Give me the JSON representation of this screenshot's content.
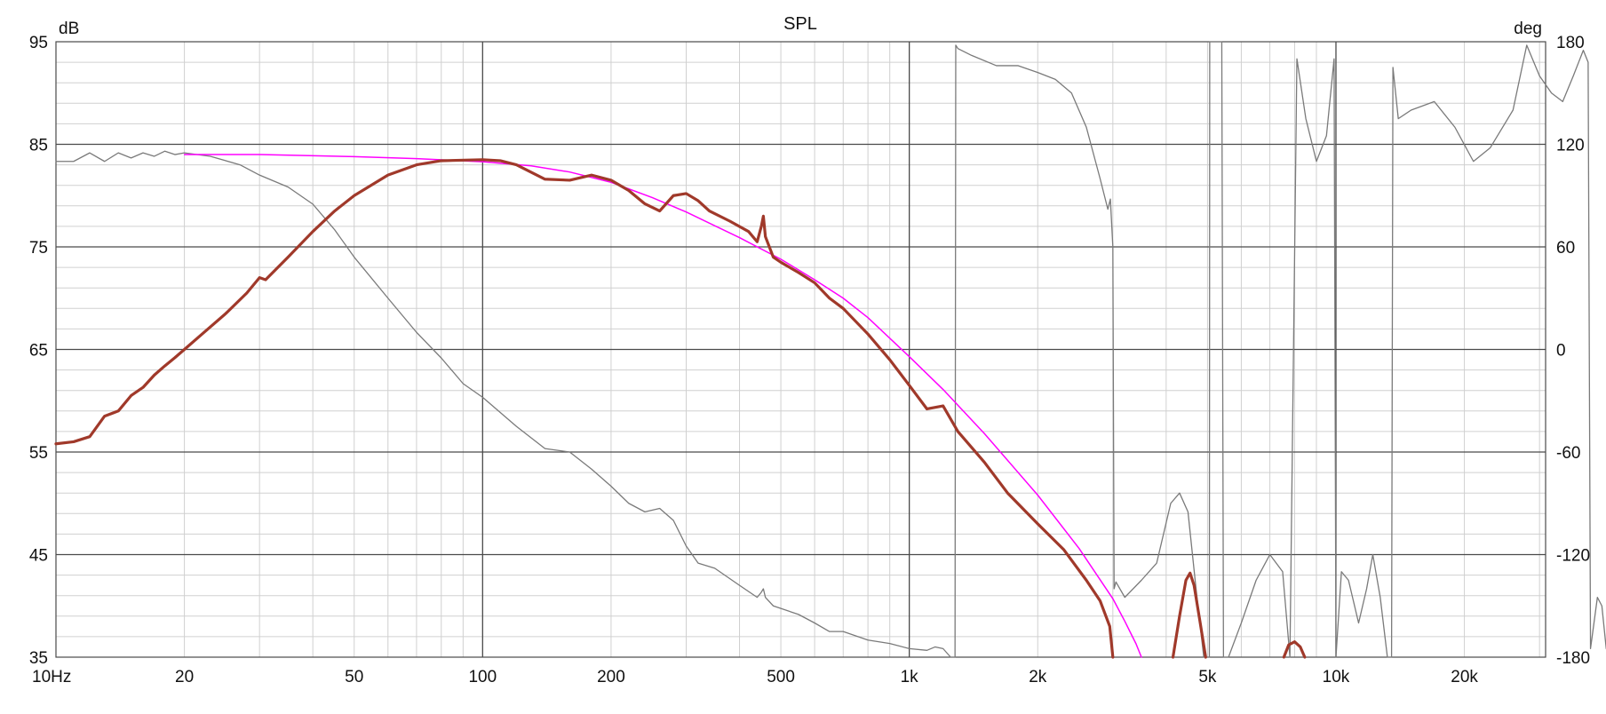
{
  "chart_data": {
    "type": "line",
    "title": "SPL",
    "y_left_unit": "dB",
    "y_right_unit": "deg",
    "x_scale": "log",
    "xlim": [
      10,
      31000
    ],
    "ylim_left": [
      35,
      95
    ],
    "ylim_right": [
      -180,
      180
    ],
    "grid": true,
    "legend": "none",
    "x_tick_labels": [
      {
        "value": 10,
        "label": "10Hz"
      },
      {
        "value": 20,
        "label": "20"
      },
      {
        "value": 50,
        "label": "50"
      },
      {
        "value": 100,
        "label": "100"
      },
      {
        "value": 200,
        "label": "200"
      },
      {
        "value": 500,
        "label": "500"
      },
      {
        "value": 1000,
        "label": "1k"
      },
      {
        "value": 2000,
        "label": "2k"
      },
      {
        "value": 5000,
        "label": "5k"
      },
      {
        "value": 10000,
        "label": "10k"
      },
      {
        "value": 20000,
        "label": "20k"
      }
    ],
    "y_left_tick_labels": [
      {
        "value": 95,
        "label": "95"
      },
      {
        "value": 85,
        "label": "85"
      },
      {
        "value": 75,
        "label": "75"
      },
      {
        "value": 65,
        "label": "65"
      },
      {
        "value": 55,
        "label": "55"
      },
      {
        "value": 45,
        "label": "45"
      },
      {
        "value": 35,
        "label": "35"
      }
    ],
    "y_right_tick_labels": [
      {
        "value": 180,
        "label": "180"
      },
      {
        "value": 120,
        "label": "120"
      },
      {
        "value": 60,
        "label": "60"
      },
      {
        "value": 0,
        "label": "0"
      },
      {
        "value": -60,
        "label": "-60"
      },
      {
        "value": -120,
        "label": "-120"
      },
      {
        "value": -180,
        "label": "-180"
      }
    ],
    "colors": {
      "spl": "#a0392a",
      "target": "#ff00ff",
      "phase": "#7a7a7a",
      "major_grid": "#4a4a4a",
      "minor_grid": "#d0d0d0"
    },
    "series": [
      {
        "key": "spl",
        "axis": "left",
        "points": [
          [
            10,
            55.8
          ],
          [
            11,
            56
          ],
          [
            12,
            56.5
          ],
          [
            13,
            58.5
          ],
          [
            14,
            59
          ],
          [
            15,
            60.5
          ],
          [
            16,
            61.3
          ],
          [
            17,
            62.5
          ],
          [
            18,
            63.4
          ],
          [
            19,
            64.2
          ],
          [
            20,
            65
          ],
          [
            22,
            66.5
          ],
          [
            25,
            68.5
          ],
          [
            28,
            70.5
          ],
          [
            30,
            72
          ],
          [
            31,
            71.8
          ],
          [
            35,
            74
          ],
          [
            40,
            76.5
          ],
          [
            45,
            78.5
          ],
          [
            50,
            80
          ],
          [
            60,
            82
          ],
          [
            70,
            83
          ],
          [
            80,
            83.4
          ],
          [
            100,
            83.5
          ],
          [
            110,
            83.4
          ],
          [
            120,
            83
          ],
          [
            140,
            81.6
          ],
          [
            160,
            81.5
          ],
          [
            180,
            82
          ],
          [
            200,
            81.5
          ],
          [
            220,
            80.5
          ],
          [
            240,
            79.2
          ],
          [
            260,
            78.5
          ],
          [
            280,
            80
          ],
          [
            300,
            80.2
          ],
          [
            320,
            79.5
          ],
          [
            340,
            78.5
          ],
          [
            380,
            77.5
          ],
          [
            420,
            76.5
          ],
          [
            440,
            75.5
          ],
          [
            450,
            77
          ],
          [
            455,
            78
          ],
          [
            460,
            76
          ],
          [
            480,
            74
          ],
          [
            500,
            73.5
          ],
          [
            550,
            72.5
          ],
          [
            600,
            71.5
          ],
          [
            650,
            70
          ],
          [
            700,
            69
          ],
          [
            800,
            66.5
          ],
          [
            900,
            64
          ],
          [
            1000,
            61.5
          ],
          [
            1100,
            59.2
          ],
          [
            1200,
            59.5
          ],
          [
            1300,
            57
          ],
          [
            1500,
            54
          ],
          [
            1700,
            51
          ],
          [
            2000,
            48
          ],
          [
            2300,
            45.5
          ],
          [
            2600,
            42.5
          ],
          [
            2800,
            40.5
          ],
          [
            2950,
            38
          ],
          [
            3000,
            35
          ]
        ]
      },
      {
        "key": "spl-hf-1",
        "axis": "left",
        "points": [
          [
            4150,
            35
          ],
          [
            4300,
            39
          ],
          [
            4450,
            42.5
          ],
          [
            4550,
            43.2
          ],
          [
            4650,
            42
          ],
          [
            4800,
            38.5
          ],
          [
            4950,
            35
          ]
        ]
      },
      {
        "key": "spl-hf-2",
        "axis": "left",
        "points": [
          [
            7550,
            35
          ],
          [
            7750,
            36.2
          ],
          [
            8000,
            36.5
          ],
          [
            8250,
            36
          ],
          [
            8450,
            35
          ]
        ]
      },
      {
        "key": "target",
        "axis": "left",
        "points": [
          [
            20,
            84
          ],
          [
            30,
            84
          ],
          [
            50,
            83.8
          ],
          [
            70,
            83.6
          ],
          [
            100,
            83.3
          ],
          [
            130,
            82.9
          ],
          [
            160,
            82.3
          ],
          [
            200,
            81.3
          ],
          [
            250,
            79.8
          ],
          [
            300,
            78.4
          ],
          [
            400,
            75.9
          ],
          [
            500,
            73.8
          ],
          [
            600,
            71.8
          ],
          [
            700,
            70
          ],
          [
            800,
            68.1
          ],
          [
            1000,
            64.3
          ],
          [
            1200,
            61.1
          ],
          [
            1500,
            56.8
          ],
          [
            2000,
            50.8
          ],
          [
            2500,
            45.6
          ],
          [
            3000,
            40.7
          ],
          [
            3200,
            38.5
          ],
          [
            3400,
            36.3
          ],
          [
            3500,
            35
          ]
        ]
      },
      {
        "key": "phase",
        "axis": "right",
        "points": [
          [
            10,
            110
          ],
          [
            11,
            110
          ],
          [
            12,
            115
          ],
          [
            13,
            110
          ],
          [
            14,
            115
          ],
          [
            15,
            112
          ],
          [
            16,
            115
          ],
          [
            17,
            113
          ],
          [
            18,
            116
          ],
          [
            19,
            114
          ],
          [
            20,
            115
          ],
          [
            23,
            113
          ],
          [
            27,
            108
          ],
          [
            30,
            102
          ],
          [
            35,
            95
          ],
          [
            40,
            85
          ],
          [
            45,
            70
          ],
          [
            50,
            54
          ],
          [
            60,
            30
          ],
          [
            70,
            10
          ],
          [
            80,
            -5
          ],
          [
            90,
            -20
          ],
          [
            100,
            -28
          ],
          [
            120,
            -45
          ],
          [
            140,
            -58
          ],
          [
            160,
            -60
          ],
          [
            180,
            -70
          ],
          [
            200,
            -80
          ],
          [
            220,
            -90
          ],
          [
            240,
            -95
          ],
          [
            260,
            -93
          ],
          [
            280,
            -100
          ],
          [
            300,
            -115
          ],
          [
            320,
            -125
          ],
          [
            350,
            -128
          ],
          [
            400,
            -138
          ],
          [
            440,
            -145
          ],
          [
            450,
            -142
          ],
          [
            455,
            -140
          ],
          [
            460,
            -145
          ],
          [
            480,
            -150
          ],
          [
            550,
            -155
          ],
          [
            600,
            -160
          ],
          [
            650,
            -165
          ],
          [
            700,
            -165
          ],
          [
            800,
            -170
          ],
          [
            900,
            -172
          ],
          [
            1000,
            -175
          ],
          [
            1100,
            -176
          ],
          [
            1150,
            -174
          ],
          [
            1200,
            -175
          ],
          [
            1250,
            -180
          ],
          [
            1280,
            -180
          ],
          [
            1285,
            178
          ],
          [
            1300,
            176
          ],
          [
            1400,
            172
          ],
          [
            1600,
            166
          ],
          [
            1800,
            166
          ],
          [
            2000,
            162
          ],
          [
            2200,
            158
          ],
          [
            2400,
            150
          ],
          [
            2600,
            130
          ],
          [
            2800,
            100
          ],
          [
            2920,
            82
          ],
          [
            2960,
            88
          ],
          [
            3000,
            60
          ],
          [
            3020,
            -140
          ],
          [
            3050,
            -136
          ],
          [
            3200,
            -145
          ],
          [
            3500,
            -135
          ],
          [
            3800,
            -125
          ],
          [
            4100,
            -90
          ],
          [
            4300,
            -84
          ],
          [
            4500,
            -95
          ],
          [
            4700,
            -140
          ],
          [
            4900,
            -180
          ],
          [
            5050,
            -180
          ],
          [
            5060,
            180
          ],
          [
            5400,
            180
          ],
          [
            5450,
            -180
          ],
          [
            5600,
            -180
          ],
          [
            6000,
            -160
          ],
          [
            6500,
            -135
          ],
          [
            7000,
            -120
          ],
          [
            7500,
            -130
          ],
          [
            7800,
            -180
          ],
          [
            8100,
            170
          ],
          [
            8500,
            135
          ],
          [
            9000,
            110
          ],
          [
            9500,
            125
          ],
          [
            9900,
            170
          ],
          [
            10000,
            -180
          ],
          [
            10300,
            -130
          ],
          [
            10700,
            -135
          ],
          [
            11300,
            -160
          ],
          [
            11800,
            -140
          ],
          [
            12200,
            -120
          ],
          [
            12700,
            -145
          ],
          [
            13200,
            -180
          ],
          [
            13500,
            -180
          ],
          [
            13600,
            165
          ],
          [
            14000,
            135
          ],
          [
            15000,
            140
          ],
          [
            17000,
            145
          ],
          [
            19000,
            130
          ],
          [
            21000,
            110
          ],
          [
            23000,
            118
          ],
          [
            26000,
            140
          ],
          [
            28000,
            178
          ],
          [
            30000,
            160
          ],
          [
            32000,
            150
          ],
          [
            34000,
            145
          ],
          [
            36000,
            160
          ],
          [
            38000,
            175
          ],
          [
            39000,
            168
          ],
          [
            39500,
            -175
          ],
          [
            40000,
            -165
          ],
          [
            41000,
            -145
          ],
          [
            42000,
            -150
          ],
          [
            43000,
            -175
          ],
          [
            44000,
            -180
          ]
        ]
      }
    ]
  }
}
